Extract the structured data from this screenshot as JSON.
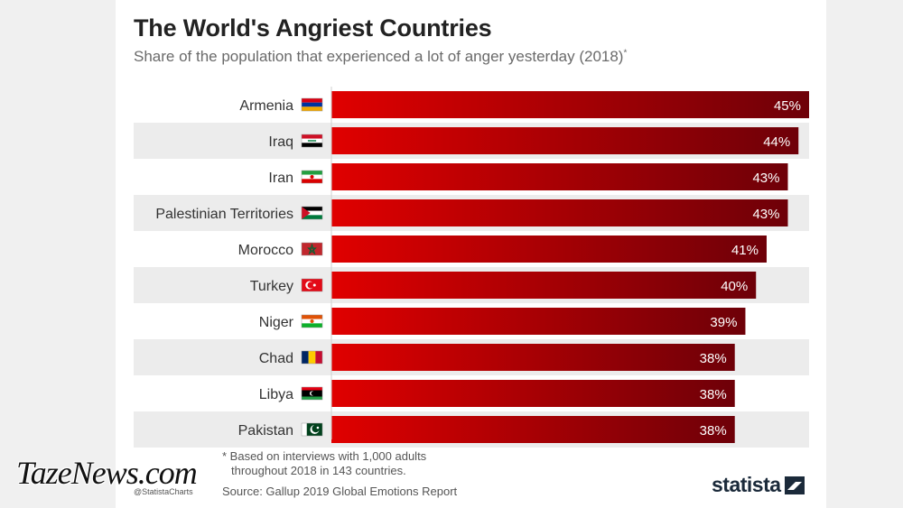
{
  "header": {
    "title": "The World's Angriest Countries",
    "subtitle": "Share of the population that experienced a lot of anger yesterday (2018)",
    "subtitle_mark": "*"
  },
  "chart_data": {
    "type": "bar",
    "orientation": "horizontal",
    "title": "The World's Angriest Countries",
    "subtitle": "Share of the population that experienced a lot of anger yesterday (2018)",
    "categories": [
      "Armenia",
      "Iraq",
      "Iran",
      "Palestinian Territories",
      "Morocco",
      "Turkey",
      "Niger",
      "Chad",
      "Libya",
      "Pakistan"
    ],
    "values": [
      45,
      44,
      43,
      43,
      41,
      40,
      39,
      38,
      38,
      38
    ],
    "value_labels": [
      "45%",
      "44%",
      "43%",
      "43%",
      "41%",
      "40%",
      "39%",
      "38%",
      "38%",
      "38%"
    ],
    "flags": [
      "armenia-flag",
      "iraq-flag",
      "iran-flag",
      "palestine-flag",
      "morocco-flag",
      "turkey-flag",
      "niger-flag",
      "chad-flag",
      "libya-flag",
      "pakistan-flag"
    ],
    "xlim": [
      0,
      45
    ],
    "grid": false,
    "bar_gradient": [
      "#e00000",
      "#6e0008"
    ],
    "label_color": "#ffffff"
  },
  "footer": {
    "footnote_line1": "* Based on interviews with 1,000 adults",
    "footnote_line2": "throughout 2018 in 143 countries.",
    "source": "Source: Gallup 2019 Global Emotions Report",
    "handle": "@StatistaCharts",
    "logo": "statista",
    "watermark": "TazeNews.com"
  },
  "colors": {
    "stripe": "#ececec",
    "title": "#222222",
    "text": "#555555"
  }
}
